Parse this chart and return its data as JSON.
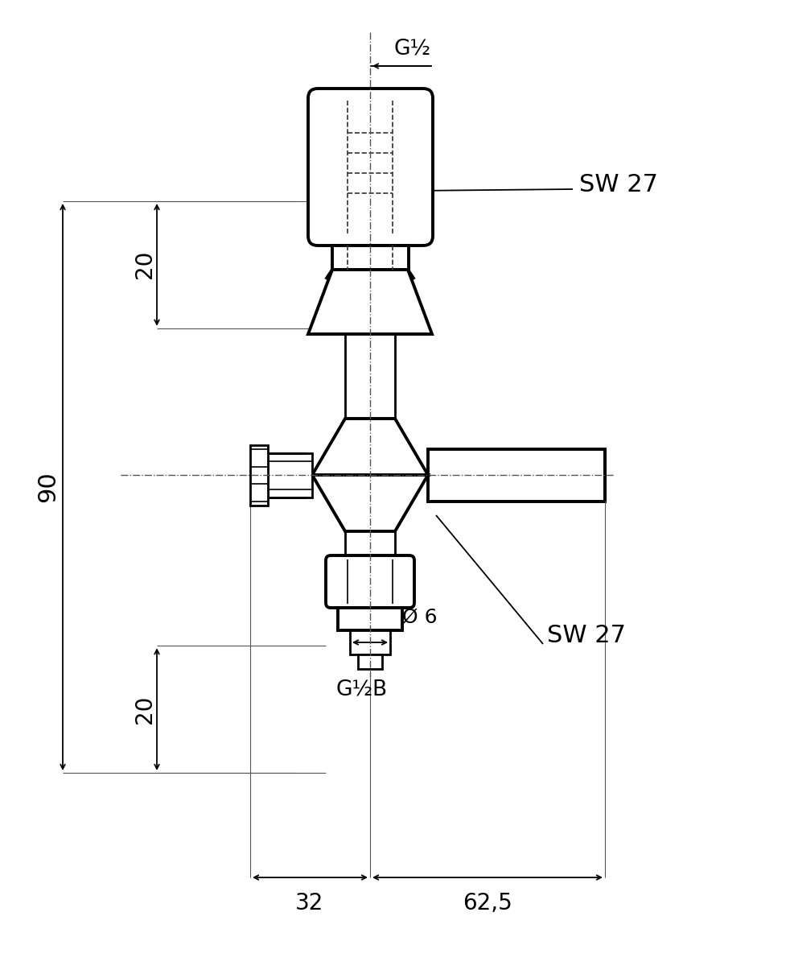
{
  "bg_color": "#ffffff",
  "line_color": "#000000",
  "fig_width": 9.82,
  "fig_height": 12.0,
  "dpi": 100,
  "texts": {
    "G_half_top": {
      "text": "G½",
      "fontsize": 19
    },
    "SW27_top": {
      "text": "SW 27",
      "fontsize": 22
    },
    "SW27_bot": {
      "text": "SW 27",
      "fontsize": 22
    },
    "dim_90": {
      "text": "90",
      "fontsize": 22
    },
    "dim_20_top": {
      "text": "20",
      "fontsize": 20
    },
    "dim_20_bot": {
      "text": "20",
      "fontsize": 20
    },
    "dim_phi6": {
      "text": "Ø 6",
      "fontsize": 18
    },
    "G_half_B": {
      "text": "G½B",
      "fontsize": 19
    },
    "dim_32": {
      "text": "32",
      "fontsize": 20
    },
    "dim_62_5": {
      "text": "62,5",
      "fontsize": 20
    }
  }
}
